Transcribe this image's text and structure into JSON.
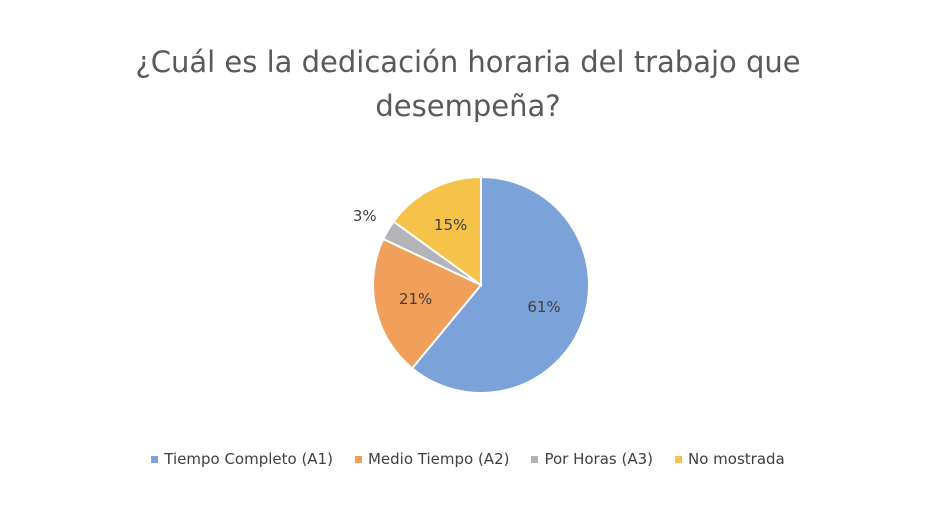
{
  "chart_data": {
    "type": "pie",
    "title": "¿Cuál es la dedicación horaria del trabajo que desempeña?",
    "categories": [
      "Tiempo Completo (A1)",
      "Medio Tiempo (A2)",
      "Por Horas (A3)",
      "No mostrada"
    ],
    "values": [
      61,
      21,
      3,
      15
    ],
    "value_labels": [
      "61%",
      "21%",
      "3%",
      "15%"
    ],
    "colors": [
      "#7ba3d9",
      "#f0a05a",
      "#b4b4b8",
      "#f5c24a"
    ],
    "legend": "bottom"
  }
}
